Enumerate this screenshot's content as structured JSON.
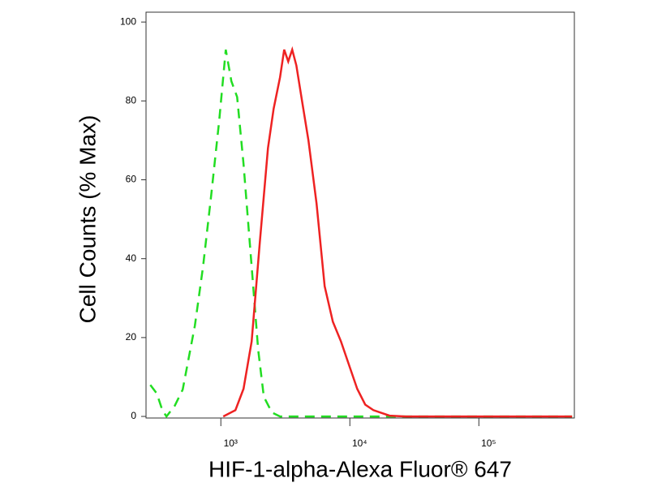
{
  "chart_data": {
    "type": "line",
    "x_label": "HIF-1-alpha-Alexa Fluor® 647",
    "y_label": "Cell Counts (% Max)",
    "x_scale": "log",
    "xlim": [
      263,
      550000
    ],
    "ylim": [
      -0.4,
      102.5
    ],
    "xticks": [
      {
        "value": 1000,
        "label": "10³"
      },
      {
        "value": 10000,
        "label": "10⁴"
      },
      {
        "value": 100000,
        "label": "10⁵"
      }
    ],
    "yticks": [
      0,
      20,
      40,
      60,
      80,
      100
    ],
    "grid": false,
    "series": [
      {
        "color": "#22dd22",
        "dash": true,
        "x": [
          284,
          319,
          352,
          379,
          439,
          506,
          629,
          728,
          841,
          971,
          1091,
          1207,
          1337,
          1500,
          1733,
          1946,
          2153,
          2489,
          2877,
          27160,
          528000
        ],
        "values": [
          8,
          5.8,
          1.6,
          0,
          2.7,
          6.8,
          23,
          38,
          56,
          75,
          93,
          85,
          81,
          64,
          38,
          17,
          5,
          1,
          0,
          0,
          0
        ]
      },
      {
        "color": "#ee2222",
        "dash": false,
        "x": [
          1044,
          1298,
          1500,
          1733,
          2004,
          2317,
          2564,
          2877,
          3097,
          3327,
          3575,
          3846,
          4256,
          4775,
          5521,
          6383,
          7379,
          8531,
          9863,
          11400,
          13150,
          15210,
          20320,
          27160,
          115600,
          528000
        ],
        "values": [
          0,
          1.6,
          7,
          19,
          44,
          68,
          78,
          86,
          93,
          90,
          93,
          89,
          80,
          70,
          54,
          33,
          24,
          19,
          13,
          7,
          3,
          1.6,
          0.2,
          0,
          0,
          0
        ]
      }
    ]
  }
}
